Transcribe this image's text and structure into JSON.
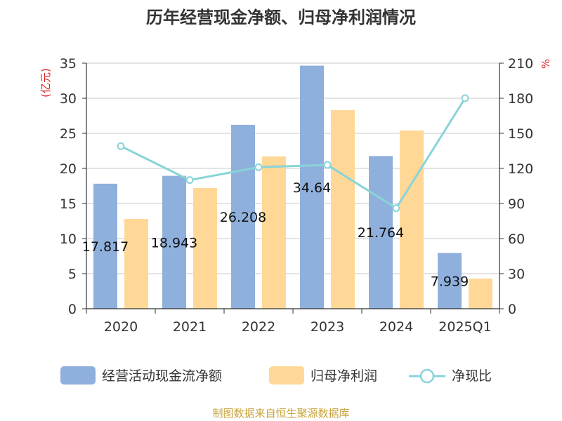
{
  "title": "历年经营现金净额、归母净利润情况",
  "source": "制图数据来自恒生聚源数据库",
  "colors": {
    "bar1": "#8fb0dc",
    "bar2": "#ffd897",
    "line": "#88d4d8",
    "unit_left": "#e02020",
    "unit_right": "#e02020",
    "source": "#c8a43c"
  },
  "chart_data": {
    "type": "bar",
    "categories": [
      "2020",
      "2021",
      "2022",
      "2023",
      "2024",
      "2025Q1"
    ],
    "y_left": {
      "label": "(亿元)",
      "ticks": [
        "0",
        "5",
        "10",
        "15",
        "20",
        "25",
        "30",
        "35"
      ],
      "range": [
        0,
        35
      ]
    },
    "y_right": {
      "label": "%",
      "ticks": [
        "0",
        "30",
        "60",
        "90",
        "120",
        "150",
        "180",
        "210"
      ],
      "range": [
        0,
        210
      ]
    },
    "series": [
      {
        "name": "经营活动现金流净额",
        "type": "bar",
        "axis": "left",
        "values": [
          17.817,
          18.943,
          26.208,
          34.64,
          21.764,
          7.939
        ],
        "labels": [
          "17.817",
          "18.943",
          "26.208",
          "34.64",
          "21.764",
          "7.939"
        ]
      },
      {
        "name": "归母净利润",
        "type": "bar",
        "axis": "left",
        "values": [
          12.8,
          17.2,
          21.7,
          28.3,
          25.4,
          4.3
        ]
      },
      {
        "name": "净现比",
        "type": "line",
        "axis": "right",
        "values": [
          139,
          110,
          121,
          123,
          86,
          180
        ]
      }
    ],
    "grid": true,
    "legend": "bottom"
  }
}
